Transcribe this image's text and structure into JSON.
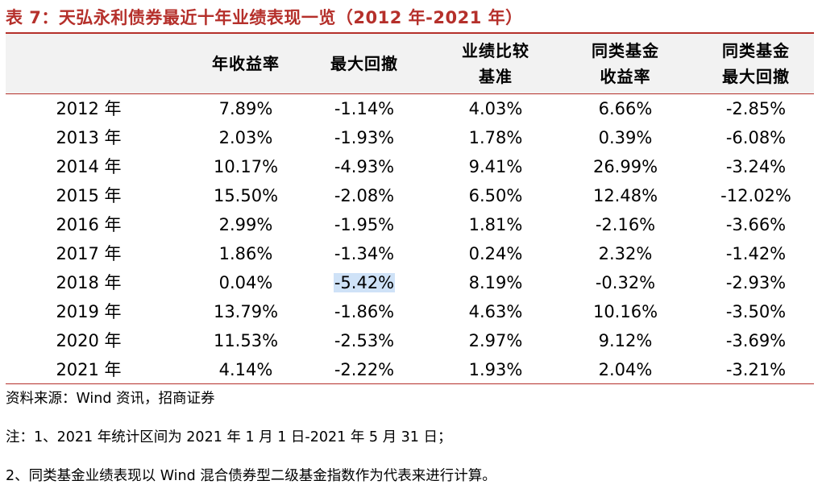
{
  "title": "表 7：天弘永利债券最近十年业绩表现一览（2012 年-2021 年）",
  "colors": {
    "accent": "#b5302b",
    "header_band": "#f2f2f2",
    "selection_highlight": "#cfe2f7"
  },
  "table": {
    "headers": [
      {
        "lines": [
          "年收益率"
        ]
      },
      {
        "lines": [
          "最大回撤"
        ]
      },
      {
        "lines": [
          "业绩比较",
          "基准"
        ]
      },
      {
        "lines": [
          "同类基金",
          "收益率"
        ]
      },
      {
        "lines": [
          "同类基金",
          "最大回撤"
        ]
      }
    ],
    "rows": [
      {
        "year": "2012 年",
        "annual_return": "7.89%",
        "max_drawdown": "-1.14%",
        "benchmark": "4.03%",
        "peer_return": "6.66%",
        "peer_drawdown": "-2.85%"
      },
      {
        "year": "2013 年",
        "annual_return": "2.03%",
        "max_drawdown": "-1.93%",
        "benchmark": "1.78%",
        "peer_return": "0.39%",
        "peer_drawdown": "-6.08%"
      },
      {
        "year": "2014 年",
        "annual_return": "10.17%",
        "max_drawdown": "-4.93%",
        "benchmark": "9.41%",
        "peer_return": "26.99%",
        "peer_drawdown": "-3.24%"
      },
      {
        "year": "2015 年",
        "annual_return": "15.50%",
        "max_drawdown": "-2.08%",
        "benchmark": "6.50%",
        "peer_return": "12.48%",
        "peer_drawdown": "-12.02%"
      },
      {
        "year": "2016 年",
        "annual_return": "2.99%",
        "max_drawdown": "-1.95%",
        "benchmark": "1.81%",
        "peer_return": "-2.16%",
        "peer_drawdown": "-3.66%"
      },
      {
        "year": "2017 年",
        "annual_return": "1.86%",
        "max_drawdown": "-1.34%",
        "benchmark": "0.24%",
        "peer_return": "2.32%",
        "peer_drawdown": "-1.42%"
      },
      {
        "year": "2018 年",
        "annual_return": "0.04%",
        "max_drawdown": "-5.42%",
        "benchmark": "8.19%",
        "peer_return": "-0.32%",
        "peer_drawdown": "-2.93%"
      },
      {
        "year": "2019 年",
        "annual_return": "13.79%",
        "max_drawdown": "-1.86%",
        "benchmark": "4.63%",
        "peer_return": "10.16%",
        "peer_drawdown": "-3.50%"
      },
      {
        "year": "2020 年",
        "annual_return": "11.53%",
        "max_drawdown": "-2.53%",
        "benchmark": "2.97%",
        "peer_return": "9.12%",
        "peer_drawdown": "-3.69%"
      },
      {
        "year": "2021 年",
        "annual_return": "4.14%",
        "max_drawdown": "-2.22%",
        "benchmark": "1.93%",
        "peer_return": "2.04%",
        "peer_drawdown": "-3.21%"
      }
    ]
  },
  "source": "资料来源：Wind 资讯，招商证券",
  "notes": [
    "注：1、2021 年统计区间为 2021 年 1 月 1 日-2021 年 5 月 31 日；",
    "2、同类基金业绩表现以 Wind 混合债券型二级基金指数作为代表来进行计算。"
  ]
}
